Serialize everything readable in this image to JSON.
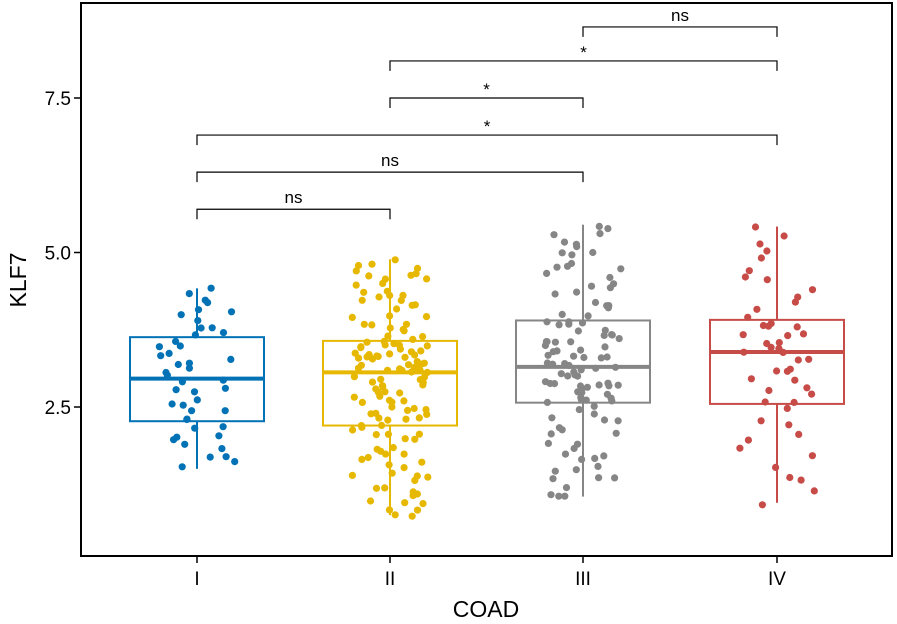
{
  "chart_data": {
    "type": "box",
    "xlabel": "COAD",
    "ylabel": "KLF7",
    "categories": [
      "I",
      "II",
      "III",
      "IV"
    ],
    "ylim": [
      0.3,
      9.3
    ],
    "yticks": [
      2.5,
      5.0,
      7.5
    ],
    "ytick_labels": [
      "2.5",
      "5.0",
      "7.5"
    ],
    "series_colors": [
      "#0072B5",
      "#E7B800",
      "#868686",
      "#C74C48"
    ],
    "boxes": [
      {
        "category": "I",
        "whisker_low": 1.5,
        "q1": 2.27,
        "median": 2.96,
        "q3": 3.63,
        "whisker_high": 4.42
      },
      {
        "category": "II",
        "whisker_low": 0.75,
        "q1": 2.2,
        "median": 3.06,
        "q3": 3.57,
        "whisker_high": 4.89
      },
      {
        "category": "III",
        "whisker_low": 1.05,
        "q1": 2.57,
        "median": 3.15,
        "q3": 3.9,
        "whisker_high": 5.45
      },
      {
        "category": "IV",
        "whisker_low": 0.95,
        "q1": 2.55,
        "median": 3.39,
        "q3": 3.91,
        "whisker_high": 5.42
      }
    ],
    "points": [
      {
        "category": "I",
        "n": 46
      },
      {
        "category": "II",
        "n": 135
      },
      {
        "category": "III",
        "n": 110
      },
      {
        "category": "IV",
        "n": 50
      }
    ],
    "comparisons": [
      {
        "groups": [
          "I",
          "II"
        ],
        "y": 5.7,
        "label": "ns"
      },
      {
        "groups": [
          "I",
          "III"
        ],
        "y": 6.3,
        "label": "ns"
      },
      {
        "groups": [
          "I",
          "IV"
        ],
        "y": 6.9,
        "label": "*"
      },
      {
        "groups": [
          "II",
          "III"
        ],
        "y": 7.5,
        "label": "*"
      },
      {
        "groups": [
          "II",
          "IV"
        ],
        "y": 8.1,
        "label": "*"
      },
      {
        "groups": [
          "III",
          "IV"
        ],
        "y": 8.65,
        "label": "ns"
      }
    ]
  }
}
